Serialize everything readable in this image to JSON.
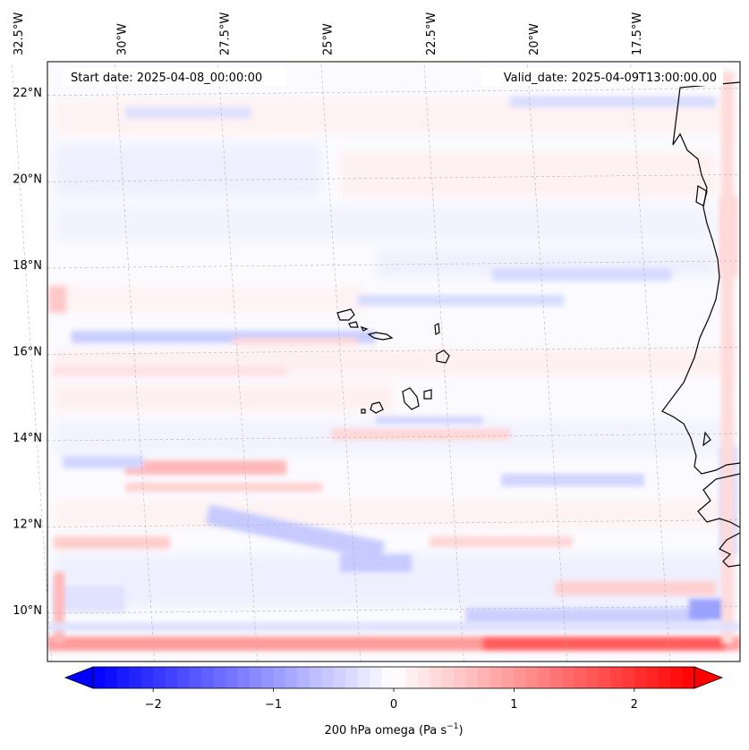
{
  "map": {
    "start_label": "Start date: 2025-04-08_00:00:00",
    "valid_label": "Valid_date: 2025-04-09T13:00:00.00",
    "lon_ticks": [
      {
        "label": "32.5°W",
        "lon": -32.5
      },
      {
        "label": "30°W",
        "lon": -30
      },
      {
        "label": "27.5°W",
        "lon": -27.5
      },
      {
        "label": "25°W",
        "lon": -25
      },
      {
        "label": "22.5°W",
        "lon": -22.5
      },
      {
        "label": "20°W",
        "lon": -20
      },
      {
        "label": "17.5°W",
        "lon": -17.5
      }
    ],
    "lat_ticks": [
      {
        "label": "22°N",
        "lat": 22
      },
      {
        "label": "20°N",
        "lat": 20
      },
      {
        "label": "18°N",
        "lat": 18
      },
      {
        "label": "16°N",
        "lat": 16
      },
      {
        "label": "14°N",
        "lat": 14
      },
      {
        "label": "12°N",
        "lat": 12
      },
      {
        "label": "10°N",
        "lat": 10
      }
    ],
    "extent": {
      "lon_min": -32.6,
      "lon_max": -15.8,
      "lat_min": 8.8,
      "lat_max": 22.7
    },
    "field": "200 hPa omega",
    "colors": {
      "negative": "#0000ff",
      "zero": "#ffffff",
      "positive": "#ff0000",
      "coast": "#000000",
      "grid": "#b0b0b0"
    }
  },
  "colorbar": {
    "ticks": [
      {
        "label": "−2",
        "value": -2
      },
      {
        "label": "−1",
        "value": -1
      },
      {
        "label": "0",
        "value": 0
      },
      {
        "label": "1",
        "value": 1
      },
      {
        "label": "2",
        "value": 2
      }
    ],
    "range": [
      -2.5,
      2.5
    ],
    "label_main": "200 hPa omega (Pa s",
    "label_sup": "−1",
    "label_end": ")",
    "cmap": "bwr"
  }
}
